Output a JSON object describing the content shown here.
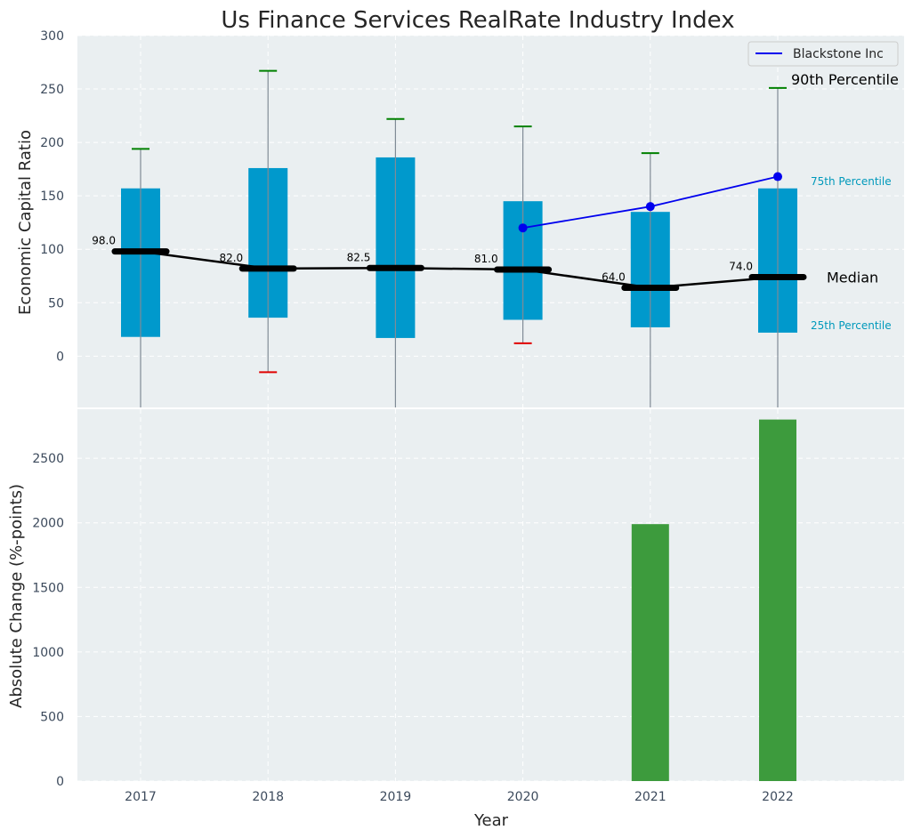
{
  "chart_data": [
    {
      "type": "box",
      "title": "Us Finance Services RealRate Industry Index",
      "ylabel": "Economic Capital Ratio",
      "xlabel": "",
      "ylim": [
        -48,
        300
      ],
      "yticks": [
        0,
        50,
        100,
        150,
        200,
        250,
        300
      ],
      "grid": true,
      "categories": [
        "2017",
        "2018",
        "2019",
        "2020",
        "2021",
        "2022"
      ],
      "boxes": [
        {
          "year": "2017",
          "q1": 18,
          "median": 98.0,
          "q3": 157,
          "whisker_low": null,
          "whisker_high": 194,
          "low_mark": null
        },
        {
          "year": "2018",
          "q1": 36,
          "median": 82.0,
          "q3": 176,
          "whisker_low": -15,
          "whisker_high": 267,
          "low_mark": -15
        },
        {
          "year": "2019",
          "q1": 17,
          "median": 82.5,
          "q3": 186,
          "whisker_low": null,
          "whisker_high": 222,
          "low_mark": null
        },
        {
          "year": "2020",
          "q1": 34,
          "median": 81.0,
          "q3": 145,
          "whisker_low": 12,
          "whisker_high": 215,
          "low_mark": 12
        },
        {
          "year": "2021",
          "q1": 27,
          "median": 64.0,
          "q3": 135,
          "whisker_low": null,
          "whisker_high": 190,
          "low_mark": null
        },
        {
          "year": "2022",
          "q1": 22,
          "median": 74.0,
          "q3": 157,
          "whisker_low": null,
          "whisker_high": 251,
          "low_mark": null
        }
      ],
      "median_labels": [
        "98.0",
        "82.0",
        "82.5",
        "81.0",
        "64.0",
        "74.0"
      ],
      "company_series": {
        "name": "Blackstone Inc",
        "x": [
          "2020",
          "2021",
          "2022"
        ],
        "values": [
          120,
          140,
          168
        ]
      },
      "annotations": {
        "p90": "90th Percentile",
        "p75": "75th Percentile",
        "median": "Median",
        "p25": "25th Percentile"
      },
      "legend": {
        "position": "top-right",
        "entries": [
          "Blackstone Inc"
        ]
      },
      "colors": {
        "background": "#eaeff1",
        "box": "#0099cc",
        "median": "#000000",
        "whisker": "#808b96",
        "high_cap": "#008000",
        "low_cap": "#e00000",
        "company": "#0000ee",
        "p75_text": "#0099bb"
      }
    },
    {
      "type": "bar",
      "ylabel": "Absolute Change (%-points)",
      "xlabel": "Year",
      "categories": [
        "2017",
        "2018",
        "2019",
        "2020",
        "2021",
        "2022"
      ],
      "values": [
        null,
        null,
        null,
        null,
        1990,
        2800
      ],
      "ylim": [
        0,
        2880
      ],
      "yticks": [
        0,
        500,
        1000,
        1500,
        2000,
        2500
      ],
      "grid": true,
      "colors": {
        "bar": "#3d9b3d",
        "background": "#eaeff1"
      }
    }
  ]
}
